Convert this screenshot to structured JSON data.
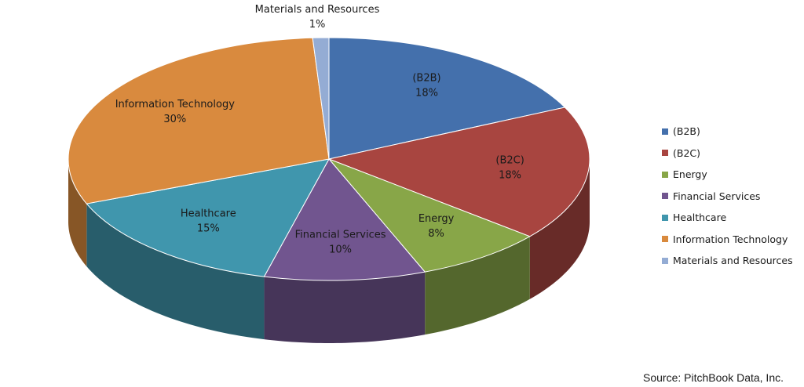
{
  "chart_data": {
    "type": "pie",
    "style": "3d",
    "categories": [
      "(B2B)",
      "(B2C)",
      "Energy",
      "Financial Services",
      "Healthcare",
      "Information Technology",
      "Materials and Resources"
    ],
    "values": [
      18,
      18,
      8,
      10,
      15,
      30,
      1
    ],
    "value_labels": [
      "18%",
      "18%",
      "8%",
      "10%",
      "15%",
      "30%",
      "1%"
    ],
    "colors": [
      "#4470ac",
      "#a84540",
      "#88a648",
      "#71558f",
      "#4096ad",
      "#d98a3e",
      "#94acd4"
    ],
    "legend_position": "right",
    "source_note": "Source: PitchBook Data, Inc."
  }
}
